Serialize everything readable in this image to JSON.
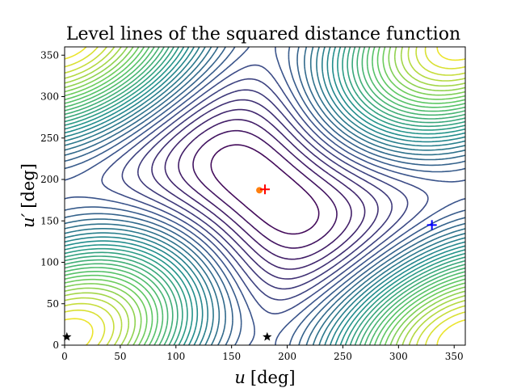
{
  "chart_data": {
    "type": "contour",
    "title": "Level lines of the squared distance function",
    "xlabel_var": "u",
    "xlabel_unit": "[deg]",
    "ylabel_var": "u′",
    "ylabel_unit": "[deg]",
    "xlim": [
      0,
      360
    ],
    "ylim": [
      0,
      360
    ],
    "xticks": [
      0,
      50,
      100,
      150,
      200,
      250,
      300,
      350
    ],
    "yticks": [
      0,
      50,
      100,
      150,
      200,
      250,
      300,
      350
    ],
    "grid": false,
    "colormap": [
      "#440154",
      "#3b528b",
      "#21918c",
      "#5ec962",
      "#fde725"
    ],
    "maximum": {
      "u": 180,
      "v": 188
    },
    "markers": [
      {
        "kind": "circle",
        "u": 175,
        "v": 187,
        "color": "#ff7f0e"
      },
      {
        "kind": "plus",
        "u": 180,
        "v": 188,
        "color": "#ff0000"
      },
      {
        "kind": "plus",
        "u": 330,
        "v": 145,
        "color": "#0000ff"
      },
      {
        "kind": "star",
        "u": 2,
        "v": 10,
        "color": "#000000"
      },
      {
        "kind": "star",
        "u": 182,
        "v": 10,
        "color": "#000000"
      }
    ]
  }
}
